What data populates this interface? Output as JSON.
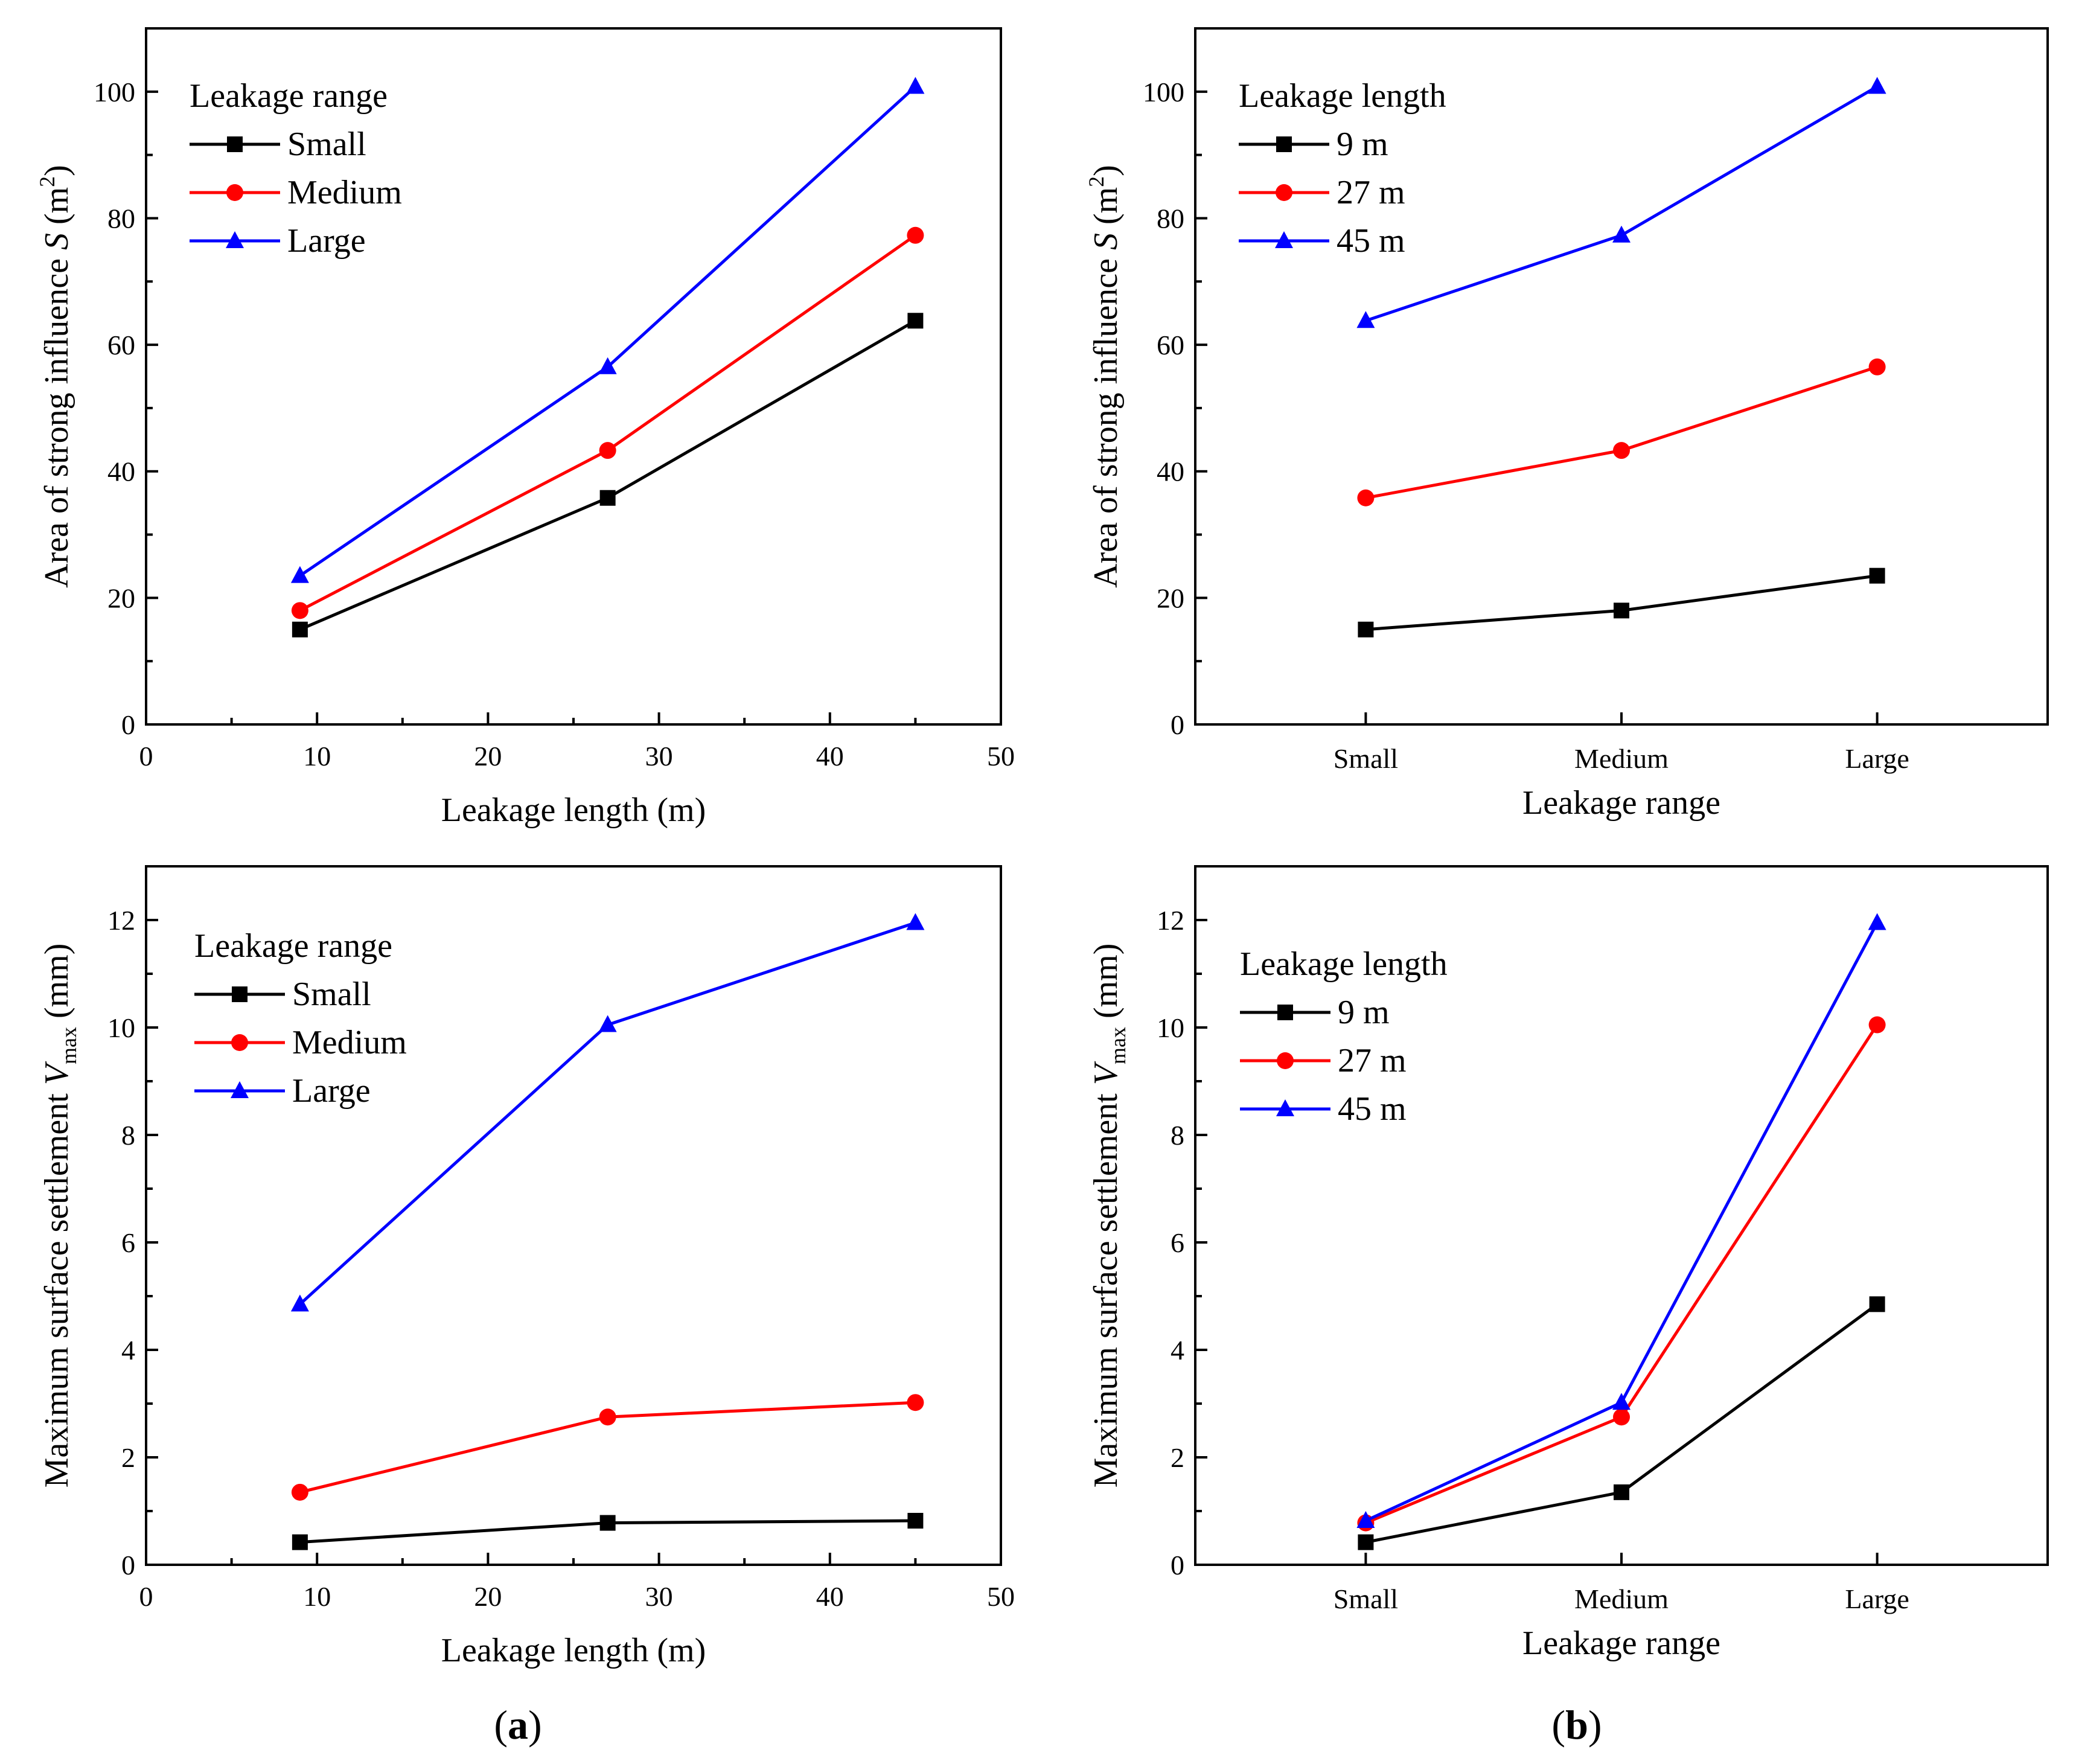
{
  "panel_labels": {
    "a": {
      "open": "(",
      "letter": "a",
      "close": ")"
    },
    "b": {
      "open": "(",
      "letter": "b",
      "close": ")"
    }
  },
  "colors": {
    "small": "#000000",
    "medium": "#ff0000",
    "large": "#0000ff"
  },
  "chart_data": [
    {
      "id": "top-left",
      "type": "line",
      "xscale": "linear",
      "xlim": [
        0,
        50
      ],
      "xticks": [
        0,
        10,
        20,
        30,
        40,
        50
      ],
      "xlabel": "Leakage length (m)",
      "ylabel": {
        "pre": "Area of strong influence ",
        "var": "S",
        "mid": " (m",
        "sup": "2",
        "post": ")"
      },
      "ylim": [
        0,
        110
      ],
      "yticks": [
        0,
        20,
        40,
        60,
        80,
        100
      ],
      "legend": {
        "title": "Leakage range",
        "placement": "top-left"
      },
      "x": [
        9,
        27,
        45
      ],
      "series": [
        {
          "name": "Small",
          "marker": "square",
          "color": "#000000",
          "values": [
            15,
            35.8,
            63.8
          ]
        },
        {
          "name": "Medium",
          "marker": "circle",
          "color": "#ff0000",
          "values": [
            18,
            43.3,
            77.3
          ]
        },
        {
          "name": "Large",
          "marker": "triangle",
          "color": "#0000ff",
          "values": [
            23.5,
            56.5,
            100.8
          ]
        }
      ]
    },
    {
      "id": "top-right",
      "type": "line",
      "xscale": "category",
      "categories": [
        "Small",
        "Medium",
        "Large"
      ],
      "xlabel": "Leakage range",
      "ylabel": {
        "pre": "Area of strong influence ",
        "var": "S",
        "mid": " (m",
        "sup": "2",
        "post": ")"
      },
      "ylim": [
        0,
        110
      ],
      "yticks": [
        0,
        20,
        40,
        60,
        80,
        100
      ],
      "legend": {
        "title": "Leakage length",
        "placement": "top-left"
      },
      "series": [
        {
          "name": "9 m",
          "marker": "square",
          "color": "#000000",
          "values": [
            15,
            18,
            23.5
          ]
        },
        {
          "name": "27 m",
          "marker": "circle",
          "color": "#ff0000",
          "values": [
            35.8,
            43.3,
            56.5
          ]
        },
        {
          "name": "45 m",
          "marker": "triangle",
          "color": "#0000ff",
          "values": [
            63.8,
            77.3,
            100.8
          ]
        }
      ]
    },
    {
      "id": "bottom-left",
      "type": "line",
      "xscale": "linear",
      "xlim": [
        0,
        50
      ],
      "xticks": [
        0,
        10,
        20,
        30,
        40,
        50
      ],
      "xlabel": "Leakage length (m)",
      "ylabel": {
        "pre": "Maximum surface settlement ",
        "var": "V",
        "sub": "max",
        "post": " (mm)"
      },
      "ylim": [
        0,
        13
      ],
      "yticks": [
        0,
        2,
        4,
        6,
        8,
        10,
        12
      ],
      "legend": {
        "title": "Leakage range",
        "placement": "top-left"
      },
      "x": [
        9,
        27,
        45
      ],
      "series": [
        {
          "name": "Small",
          "marker": "square",
          "color": "#000000",
          "values": [
            0.42,
            0.78,
            0.82
          ]
        },
        {
          "name": "Medium",
          "marker": "circle",
          "color": "#ff0000",
          "values": [
            1.35,
            2.75,
            3.02
          ]
        },
        {
          "name": "Large",
          "marker": "triangle",
          "color": "#0000ff",
          "values": [
            4.85,
            10.05,
            11.95
          ]
        }
      ]
    },
    {
      "id": "bottom-right",
      "type": "line",
      "xscale": "category",
      "categories": [
        "Small",
        "Medium",
        "Large"
      ],
      "xlabel": "Leakage range",
      "ylabel": {
        "pre": "Maximum surface settlement ",
        "var": "V",
        "sub": "max",
        "post": " (mm)"
      },
      "ylim": [
        0,
        13
      ],
      "yticks": [
        0,
        2,
        4,
        6,
        8,
        10,
        12
      ],
      "legend": {
        "title": "Leakage length",
        "placement": "top-left"
      },
      "series": [
        {
          "name": "9 m",
          "marker": "square",
          "color": "#000000",
          "values": [
            0.42,
            1.35,
            4.85
          ]
        },
        {
          "name": "27 m",
          "marker": "circle",
          "color": "#ff0000",
          "values": [
            0.78,
            2.75,
            10.05
          ]
        },
        {
          "name": "45 m",
          "marker": "triangle",
          "color": "#0000ff",
          "values": [
            0.82,
            3.02,
            11.95
          ]
        }
      ]
    }
  ]
}
